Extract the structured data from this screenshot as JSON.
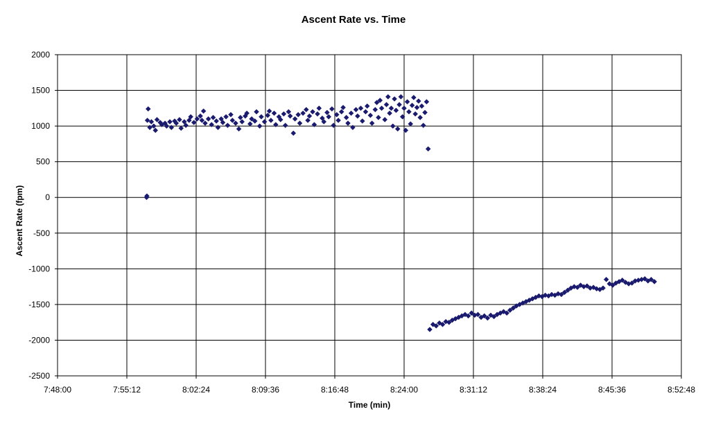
{
  "chart_data": {
    "type": "scatter",
    "title": "Ascent Rate vs. Time",
    "xlabel": "Time (min)",
    "ylabel": "Ascent Rate (fpm)",
    "x_ticks": [
      "7:48:00",
      "7:55:12",
      "8:02:24",
      "8:09:36",
      "8:16:48",
      "8:24:00",
      "8:31:12",
      "8:38:24",
      "8:45:36",
      "8:52:48"
    ],
    "xlim": [
      "7:48:00",
      "8:52:48"
    ],
    "ylim": [
      -2500,
      2000
    ],
    "y_ticks": [
      2000,
      1500,
      1000,
      500,
      0,
      -500,
      -1000,
      -1500,
      -2000,
      -2500
    ],
    "grid": true,
    "marker_color": "#1a1a6e",
    "series": [
      {
        "points": [
          [
            "7:57:15",
            0
          ],
          [
            "7:57:17",
            20
          ],
          [
            "7:57:20",
            1080
          ],
          [
            "7:57:25",
            1240
          ],
          [
            "7:57:35",
            980
          ],
          [
            "7:57:45",
            1060
          ],
          [
            "7:58:00",
            1000
          ],
          [
            "7:58:10",
            940
          ],
          [
            "7:58:20",
            1090
          ],
          [
            "7:58:40",
            1050
          ],
          [
            "7:58:50",
            1020
          ],
          [
            "7:59:10",
            1040
          ],
          [
            "7:59:20",
            1000
          ],
          [
            "7:59:40",
            1060
          ],
          [
            "7:59:50",
            980
          ],
          [
            "8:00:10",
            1070
          ],
          [
            "8:00:20",
            1040
          ],
          [
            "8:00:40",
            1090
          ],
          [
            "8:00:50",
            970
          ],
          [
            "8:01:10",
            1060
          ],
          [
            "8:01:20",
            1010
          ],
          [
            "8:01:40",
            1080
          ],
          [
            "8:01:50",
            1130
          ],
          [
            "8:02:10",
            1050
          ],
          [
            "8:02:30",
            1100
          ],
          [
            "8:02:50",
            1140
          ],
          [
            "8:03:00",
            1080
          ],
          [
            "8:03:10",
            1210
          ],
          [
            "8:03:20",
            1040
          ],
          [
            "8:03:40",
            1100
          ],
          [
            "8:04:00",
            1020
          ],
          [
            "8:04:10",
            1120
          ],
          [
            "8:04:30",
            1070
          ],
          [
            "8:04:40",
            980
          ],
          [
            "8:05:00",
            1100
          ],
          [
            "8:05:10",
            1050
          ],
          [
            "8:05:30",
            1130
          ],
          [
            "8:05:40",
            1010
          ],
          [
            "8:06:00",
            1160
          ],
          [
            "8:06:10",
            1080
          ],
          [
            "8:06:30",
            1040
          ],
          [
            "8:06:50",
            960
          ],
          [
            "8:07:00",
            1120
          ],
          [
            "8:07:10",
            1060
          ],
          [
            "8:07:30",
            1140
          ],
          [
            "8:07:40",
            1180
          ],
          [
            "8:08:00",
            1030
          ],
          [
            "8:08:10",
            1100
          ],
          [
            "8:08:30",
            1070
          ],
          [
            "8:08:40",
            1200
          ],
          [
            "8:09:00",
            1000
          ],
          [
            "8:09:10",
            1130
          ],
          [
            "8:09:30",
            1060
          ],
          [
            "8:09:50",
            1150
          ],
          [
            "8:10:00",
            1210
          ],
          [
            "8:10:10",
            1080
          ],
          [
            "8:10:30",
            1180
          ],
          [
            "8:10:40",
            1020
          ],
          [
            "8:11:00",
            1130
          ],
          [
            "8:11:10",
            1090
          ],
          [
            "8:11:30",
            1170
          ],
          [
            "8:11:40",
            1010
          ],
          [
            "8:12:00",
            1200
          ],
          [
            "8:12:10",
            1140
          ],
          [
            "8:12:30",
            900
          ],
          [
            "8:12:40",
            1100
          ],
          [
            "8:13:00",
            1160
          ],
          [
            "8:13:10",
            1040
          ],
          [
            "8:13:30",
            1180
          ],
          [
            "8:13:50",
            1230
          ],
          [
            "8:14:00",
            1080
          ],
          [
            "8:14:10",
            1140
          ],
          [
            "8:14:30",
            1200
          ],
          [
            "8:14:40",
            1020
          ],
          [
            "8:15:00",
            1170
          ],
          [
            "8:15:10",
            1250
          ],
          [
            "8:15:30",
            1110
          ],
          [
            "8:15:40",
            1060
          ],
          [
            "8:16:00",
            1190
          ],
          [
            "8:16:10",
            1130
          ],
          [
            "8:16:30",
            1240
          ],
          [
            "8:16:40",
            1010
          ],
          [
            "8:17:00",
            1160
          ],
          [
            "8:17:10",
            1080
          ],
          [
            "8:17:30",
            1200
          ],
          [
            "8:17:40",
            1260
          ],
          [
            "8:18:00",
            1120
          ],
          [
            "8:18:10",
            1040
          ],
          [
            "8:18:30",
            1180
          ],
          [
            "8:18:40",
            980
          ],
          [
            "8:19:00",
            1230
          ],
          [
            "8:19:10",
            1140
          ],
          [
            "8:19:30",
            1250
          ],
          [
            "8:19:40",
            1070
          ],
          [
            "8:20:00",
            1200
          ],
          [
            "8:20:10",
            1280
          ],
          [
            "8:20:30",
            1150
          ],
          [
            "8:20:40",
            1040
          ],
          [
            "8:21:00",
            1230
          ],
          [
            "8:21:10",
            1330
          ],
          [
            "8:21:20",
            1120
          ],
          [
            "8:21:30",
            1360
          ],
          [
            "8:21:40",
            1250
          ],
          [
            "8:22:00",
            1090
          ],
          [
            "8:22:10",
            1300
          ],
          [
            "8:22:20",
            1410
          ],
          [
            "8:22:30",
            1180
          ],
          [
            "8:22:40",
            1250
          ],
          [
            "8:22:50",
            1000
          ],
          [
            "8:23:00",
            1380
          ],
          [
            "8:23:10",
            1220
          ],
          [
            "8:23:20",
            960
          ],
          [
            "8:23:30",
            1300
          ],
          [
            "8:23:40",
            1410
          ],
          [
            "8:23:50",
            1130
          ],
          [
            "8:24:00",
            1250
          ],
          [
            "8:24:10",
            940
          ],
          [
            "8:24:20",
            1340
          ],
          [
            "8:24:30",
            1200
          ],
          [
            "8:24:40",
            1030
          ],
          [
            "8:24:50",
            1290
          ],
          [
            "8:25:00",
            1400
          ],
          [
            "8:25:10",
            1170
          ],
          [
            "8:25:20",
            1260
          ],
          [
            "8:25:30",
            1350
          ],
          [
            "8:25:40",
            1120
          ],
          [
            "8:25:50",
            1280
          ],
          [
            "8:26:00",
            1010
          ],
          [
            "8:26:10",
            1190
          ],
          [
            "8:26:20",
            1340
          ],
          [
            "8:26:30",
            680
          ],
          [
            "8:26:40",
            -1850
          ],
          [
            "8:27:00",
            -1780
          ],
          [
            "8:27:20",
            -1800
          ],
          [
            "8:27:40",
            -1760
          ],
          [
            "8:28:00",
            -1780
          ],
          [
            "8:28:20",
            -1740
          ],
          [
            "8:28:40",
            -1750
          ],
          [
            "8:29:00",
            -1720
          ],
          [
            "8:29:20",
            -1700
          ],
          [
            "8:29:40",
            -1680
          ],
          [
            "8:30:00",
            -1660
          ],
          [
            "8:30:20",
            -1640
          ],
          [
            "8:30:40",
            -1660
          ],
          [
            "8:31:00",
            -1620
          ],
          [
            "8:31:20",
            -1650
          ],
          [
            "8:31:40",
            -1640
          ],
          [
            "8:32:00",
            -1680
          ],
          [
            "8:32:20",
            -1660
          ],
          [
            "8:32:40",
            -1690
          ],
          [
            "8:33:00",
            -1650
          ],
          [
            "8:33:20",
            -1670
          ],
          [
            "8:33:40",
            -1640
          ],
          [
            "8:34:00",
            -1620
          ],
          [
            "8:34:20",
            -1600
          ],
          [
            "8:34:40",
            -1620
          ],
          [
            "8:35:00",
            -1580
          ],
          [
            "8:35:20",
            -1550
          ],
          [
            "8:35:40",
            -1520
          ],
          [
            "8:36:00",
            -1500
          ],
          [
            "8:36:20",
            -1480
          ],
          [
            "8:36:40",
            -1460
          ],
          [
            "8:37:00",
            -1440
          ],
          [
            "8:37:20",
            -1420
          ],
          [
            "8:37:40",
            -1400
          ],
          [
            "8:38:00",
            -1380
          ],
          [
            "8:38:20",
            -1390
          ],
          [
            "8:38:40",
            -1370
          ],
          [
            "8:39:00",
            -1380
          ],
          [
            "8:39:20",
            -1360
          ],
          [
            "8:39:40",
            -1370
          ],
          [
            "8:40:00",
            -1350
          ],
          [
            "8:40:20",
            -1360
          ],
          [
            "8:40:40",
            -1330
          ],
          [
            "8:41:00",
            -1300
          ],
          [
            "8:41:20",
            -1270
          ],
          [
            "8:41:40",
            -1250
          ],
          [
            "8:42:00",
            -1260
          ],
          [
            "8:42:20",
            -1230
          ],
          [
            "8:42:40",
            -1250
          ],
          [
            "8:43:00",
            -1240
          ],
          [
            "8:43:20",
            -1270
          ],
          [
            "8:43:40",
            -1260
          ],
          [
            "8:44:00",
            -1280
          ],
          [
            "8:44:20",
            -1290
          ],
          [
            "8:44:40",
            -1270
          ],
          [
            "8:45:00",
            -1150
          ],
          [
            "8:45:20",
            -1210
          ],
          [
            "8:45:40",
            -1230
          ],
          [
            "8:46:00",
            -1200
          ],
          [
            "8:46:20",
            -1180
          ],
          [
            "8:46:40",
            -1160
          ],
          [
            "8:47:00",
            -1190
          ],
          [
            "8:47:20",
            -1210
          ],
          [
            "8:47:40",
            -1200
          ],
          [
            "8:48:00",
            -1170
          ],
          [
            "8:48:20",
            -1160
          ],
          [
            "8:48:40",
            -1150
          ],
          [
            "8:49:00",
            -1140
          ],
          [
            "8:49:20",
            -1170
          ],
          [
            "8:49:40",
            -1150
          ],
          [
            "8:50:00",
            -1180
          ]
        ]
      }
    ]
  }
}
